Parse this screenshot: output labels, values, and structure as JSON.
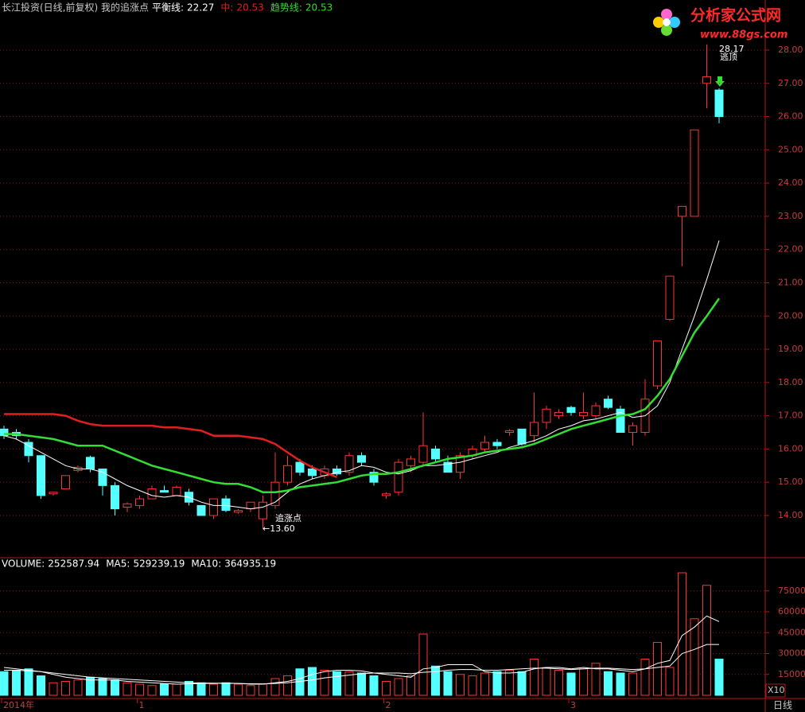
{
  "logo": {
    "title": "分析家公式网",
    "url": "www.88gs.com"
  },
  "chart_data": [
    {
      "type": "candlestick",
      "title": "长江投资(日线,前复权) 我的追涨点",
      "title_color": "#c8c8c8",
      "up_color": "#ff3232",
      "down_color": "#54ffff",
      "open": [
        16.6,
        16.5,
        16.2,
        15.8,
        14.65,
        14.8,
        15.35,
        15.75,
        15.4,
        14.9,
        14.25,
        14.3,
        14.5,
        14.75,
        14.6,
        14.7,
        14.3,
        14.0,
        14.5,
        14.1,
        14.2,
        13.9,
        14.3,
        15.0,
        15.6,
        15.4,
        15.2,
        15.4,
        15.3,
        15.8,
        15.3,
        14.6,
        14.7,
        15.5,
        15.6,
        16.0,
        15.6,
        15.3,
        15.8,
        16.0,
        16.2,
        16.5,
        16.6,
        16.4,
        16.8,
        17.0,
        17.25,
        17.0,
        17.0,
        17.5,
        17.2,
        16.5,
        16.5,
        17.9,
        19.9,
        23.0,
        23.0,
        27.0,
        26.8
      ],
      "high": [
        16.7,
        16.6,
        16.3,
        15.8,
        14.7,
        15.2,
        15.5,
        15.8,
        15.4,
        15.0,
        14.4,
        14.6,
        14.9,
        14.9,
        14.9,
        14.8,
        14.3,
        14.5,
        14.6,
        14.2,
        14.4,
        14.6,
        15.9,
        15.8,
        15.7,
        15.5,
        15.5,
        15.5,
        15.9,
        15.9,
        15.4,
        14.7,
        15.7,
        15.8,
        17.1,
        16.1,
        15.8,
        15.9,
        16.1,
        16.4,
        16.3,
        16.6,
        16.6,
        17.7,
        17.3,
        17.2,
        17.3,
        17.7,
        17.4,
        17.6,
        17.3,
        16.8,
        18.1,
        19.25,
        21.2,
        23.3,
        25.6,
        28.17,
        26.85
      ],
      "low": [
        16.3,
        16.3,
        15.6,
        14.5,
        14.6,
        14.8,
        15.3,
        15.3,
        14.6,
        14.0,
        14.1,
        14.2,
        14.5,
        14.7,
        14.6,
        14.3,
        14.0,
        13.9,
        14.1,
        14.05,
        14.1,
        13.6,
        14.2,
        14.9,
        15.2,
        15.1,
        15.1,
        15.2,
        15.2,
        15.5,
        14.9,
        14.5,
        14.6,
        15.3,
        15.5,
        15.6,
        15.3,
        15.1,
        15.7,
        15.9,
        16.0,
        16.4,
        16.1,
        16.2,
        16.6,
        16.9,
        17.0,
        16.9,
        16.9,
        17.2,
        16.5,
        16.1,
        16.4,
        17.8,
        19.85,
        21.5,
        23.0,
        26.25,
        25.8
      ],
      "close": [
        16.4,
        16.4,
        15.8,
        14.6,
        14.7,
        15.2,
        15.45,
        15.4,
        14.9,
        14.2,
        14.35,
        14.5,
        14.8,
        14.7,
        14.85,
        14.4,
        14.0,
        14.5,
        14.15,
        14.15,
        14.4,
        14.4,
        15.0,
        15.5,
        15.3,
        15.2,
        15.4,
        15.25,
        15.8,
        15.6,
        15.0,
        14.65,
        15.6,
        15.7,
        16.1,
        15.7,
        15.3,
        15.8,
        16.0,
        16.2,
        16.1,
        16.55,
        16.15,
        16.8,
        17.2,
        17.1,
        17.1,
        17.1,
        17.3,
        17.25,
        16.5,
        16.7,
        17.5,
        19.25,
        21.2,
        23.3,
        25.6,
        27.2,
        26.0
      ],
      "series": [
        {
          "name": "平衡线:",
          "last": 22.27,
          "color": "#ffffff",
          "width": 1,
          "values": [
            16.4,
            16.3,
            16.1,
            15.9,
            15.7,
            15.5,
            15.4,
            15.4,
            15.3,
            15.1,
            14.9,
            14.75,
            14.6,
            14.55,
            14.6,
            14.55,
            14.4,
            14.3,
            14.3,
            14.25,
            14.2,
            14.25,
            14.4,
            14.7,
            14.95,
            15.1,
            15.2,
            15.3,
            15.35,
            15.5,
            15.45,
            15.3,
            15.25,
            15.35,
            15.5,
            15.5,
            15.55,
            15.6,
            15.7,
            15.8,
            15.9,
            16.05,
            16.15,
            16.25,
            16.4,
            16.6,
            16.7,
            16.85,
            16.9,
            17.0,
            17.1,
            16.95,
            17.0,
            17.3,
            18.0,
            19.0,
            20.0,
            21.1,
            22.27
          ]
        },
        {
          "name": "中:",
          "last": 20.53,
          "color": "#e02020",
          "width": 2.5,
          "values": [
            17.05,
            17.05,
            17.05,
            17.05,
            17.05,
            17.0,
            16.85,
            16.75,
            16.7,
            16.7,
            16.7,
            16.7,
            16.7,
            16.65,
            16.65,
            16.6,
            16.55,
            16.4,
            16.4,
            16.4,
            16.35,
            16.3,
            16.15,
            15.9,
            15.65,
            15.45,
            15.3,
            15.15,
            null,
            null,
            null,
            null,
            null,
            null,
            null,
            null,
            null,
            null,
            null,
            null,
            null,
            null,
            null,
            null,
            null,
            null,
            null,
            null,
            null,
            null,
            null,
            null,
            null,
            null,
            null,
            null,
            null,
            null,
            null
          ]
        },
        {
          "name": "趋势线:",
          "last": 20.53,
          "color": "#33dd33",
          "width": 2.5,
          "values": [
            16.45,
            16.45,
            16.4,
            16.35,
            16.3,
            16.2,
            16.1,
            16.1,
            16.1,
            15.95,
            15.8,
            15.65,
            15.5,
            15.4,
            15.3,
            15.2,
            15.1,
            15.0,
            14.95,
            14.95,
            14.85,
            14.7,
            14.7,
            14.75,
            14.85,
            14.9,
            14.95,
            15.0,
            15.1,
            15.2,
            15.25,
            15.25,
            15.3,
            15.4,
            15.5,
            15.6,
            15.7,
            15.75,
            15.8,
            15.9,
            15.95,
            16.0,
            16.05,
            16.15,
            16.3,
            16.45,
            16.6,
            16.7,
            16.8,
            16.9,
            17.0,
            17.05,
            17.2,
            17.6,
            18.1,
            18.8,
            19.5,
            20.0,
            20.53
          ]
        }
      ],
      "annotations": [
        "追涨点",
        "←13.60",
        "28.17",
        "逃顶"
      ],
      "ylim": [
        12.8,
        29
      ],
      "yticks": [
        {
          "value": 14,
          "label": "14.00"
        },
        {
          "value": 15,
          "label": "15.00"
        },
        {
          "value": 16,
          "label": "16.00"
        },
        {
          "value": 17,
          "label": "17.00"
        },
        {
          "value": 18,
          "label": "18.00"
        },
        {
          "value": 19,
          "label": "19.00"
        },
        {
          "value": 20,
          "label": "20.00"
        },
        {
          "value": 21,
          "label": "21.00"
        },
        {
          "value": 22,
          "label": "22.00"
        },
        {
          "value": 23,
          "label": "23.00"
        },
        {
          "value": 24,
          "label": "24.00"
        },
        {
          "value": 25,
          "label": "25.00"
        },
        {
          "value": 26,
          "label": "26.00"
        },
        {
          "value": 27,
          "label": "27.00"
        },
        {
          "value": 28,
          "label": "28.00"
        }
      ],
      "grid": true
    },
    {
      "type": "bar",
      "categories": [
        "2014年",
        null,
        null,
        null,
        null,
        null,
        null,
        null,
        null,
        null,
        null,
        "1",
        null,
        null,
        null,
        null,
        null,
        null,
        null,
        null,
        null,
        null,
        null,
        null,
        null,
        null,
        null,
        null,
        null,
        null,
        null,
        "2",
        null,
        null,
        null,
        null,
        null,
        null,
        null,
        null,
        null,
        null,
        null,
        null,
        null,
        null,
        "3",
        null,
        null,
        null,
        null,
        null,
        null,
        null,
        null,
        null,
        null,
        null,
        null
      ],
      "series": [
        {
          "name": "VOLUME:",
          "last": 252587.94,
          "color": "#ffffff",
          "values": [
            17000,
            18000,
            19000,
            14000,
            9000,
            10000,
            11000,
            13000,
            12000,
            11000,
            9000,
            8000,
            7000,
            8000,
            8000,
            10000,
            9000,
            8000,
            9000,
            8000,
            7000,
            8000,
            12000,
            14000,
            19000,
            20000,
            18000,
            17000,
            17000,
            16000,
            14000,
            10000,
            12000,
            14000,
            44000,
            21000,
            17000,
            15000,
            14000,
            16000,
            17000,
            18000,
            17000,
            26000,
            20000,
            18000,
            16000,
            19000,
            23000,
            17000,
            16000,
            16000,
            26000,
            38000,
            20000,
            88000,
            55000,
            79000,
            26000
          ]
        },
        {
          "name": "MA5:",
          "last": 529239.19,
          "color": "#ffffff",
          "values": [
            20000,
            19000,
            18000,
            17000,
            15000,
            13000,
            12000,
            11000,
            11000,
            11000,
            10000,
            9500,
            9000,
            8500,
            8000,
            8200,
            8500,
            8500,
            8800,
            8500,
            8000,
            8000,
            9000,
            10000,
            12000,
            15000,
            17000,
            18000,
            18000,
            17500,
            16000,
            15000,
            14000,
            13000,
            19000,
            20000,
            22000,
            22000,
            22000,
            17000,
            16000,
            16000,
            16500,
            19000,
            20000,
            20000,
            19000,
            20000,
            19000,
            19000,
            18000,
            17000,
            19000,
            23000,
            25000,
            43000,
            49000,
            57000,
            53000
          ]
        },
        {
          "name": "MA10:",
          "last": 364935.19,
          "color": "#ffffff",
          "values": [
            18000,
            18000,
            17500,
            17000,
            16000,
            15000,
            14000,
            13000,
            12500,
            12000,
            11500,
            11000,
            10500,
            10000,
            9500,
            9000,
            8800,
            8700,
            8600,
            8500,
            8300,
            8200,
            8500,
            9000,
            10000,
            11000,
            12500,
            13500,
            14500,
            15500,
            16000,
            16000,
            16000,
            15500,
            16500,
            17000,
            18000,
            18500,
            18500,
            18000,
            18000,
            18500,
            19000,
            19500,
            19500,
            19000,
            18500,
            19000,
            19500,
            19500,
            19000,
            18500,
            19000,
            20000,
            21000,
            30000,
            33000,
            36500,
            36500
          ]
        }
      ],
      "scale_label": "X10",
      "period": "日线",
      "ylim": [
        0,
        90000
      ],
      "yticks": [
        15000,
        30000,
        45000,
        60000,
        75000
      ],
      "grid": true
    }
  ]
}
